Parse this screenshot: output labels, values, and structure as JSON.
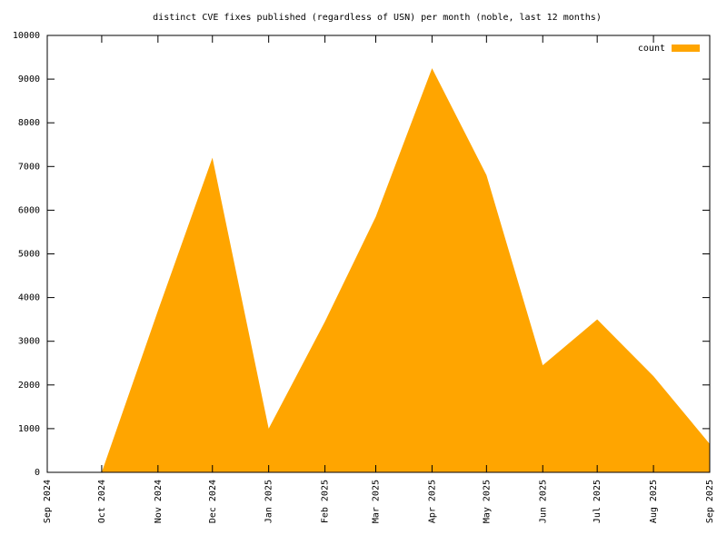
{
  "chart_data": {
    "type": "area",
    "title": "distinct CVE fixes published (regardless of USN) per month (noble, last 12 months)",
    "series": [
      {
        "name": "count",
        "color": "#ffa500",
        "x": [
          "2024-10",
          "2024-11",
          "2024-12",
          "2025-01",
          "2025-02",
          "2025-03",
          "2025-04",
          "2025-05",
          "2025-06",
          "2025-07",
          "2025-08",
          "2025-09"
        ],
        "values": [
          0,
          3700,
          7200,
          1000,
          3450,
          5850,
          9250,
          6800,
          2450,
          3500,
          2200,
          650
        ]
      }
    ],
    "xlim": [
      "2024-09",
      "2025-09"
    ],
    "xticks": [
      {
        "value": "2024-09",
        "label": "Sep 2024"
      },
      {
        "value": "2024-10",
        "label": "Oct 2024"
      },
      {
        "value": "2024-11",
        "label": "Nov 2024"
      },
      {
        "value": "2024-12",
        "label": "Dec 2024"
      },
      {
        "value": "2025-01",
        "label": "Jan 2025"
      },
      {
        "value": "2025-02",
        "label": "Feb 2025"
      },
      {
        "value": "2025-03",
        "label": "Mar 2025"
      },
      {
        "value": "2025-04",
        "label": "Apr 2025"
      },
      {
        "value": "2025-05",
        "label": "May 2025"
      },
      {
        "value": "2025-06",
        "label": "Jun 2025"
      },
      {
        "value": "2025-07",
        "label": "Jul 2025"
      },
      {
        "value": "2025-08",
        "label": "Aug 2025"
      },
      {
        "value": "2025-09",
        "label": "Sep 2025"
      }
    ],
    "ylim": [
      0,
      10000
    ],
    "yticks": [
      0,
      1000,
      2000,
      3000,
      4000,
      5000,
      6000,
      7000,
      8000,
      9000,
      10000
    ],
    "legend": "top-right"
  }
}
